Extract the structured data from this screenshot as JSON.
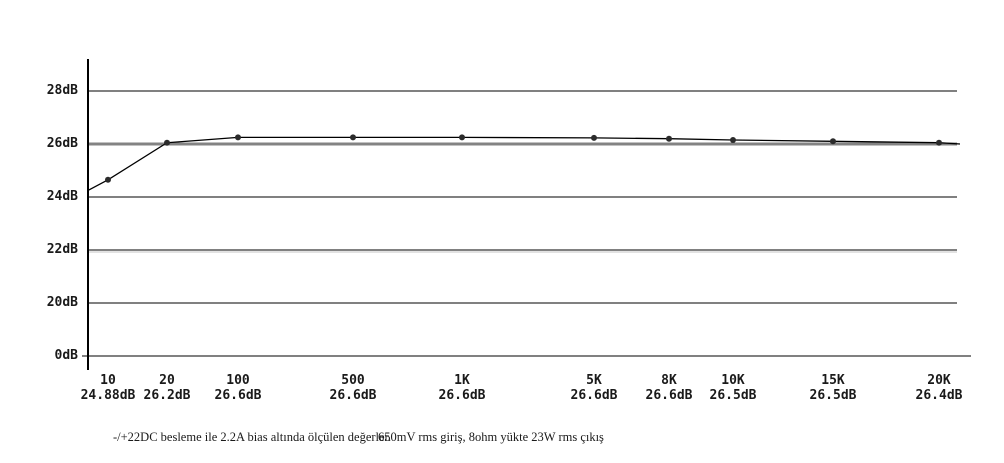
{
  "chart_data": {
    "type": "line",
    "title": "",
    "xlabel": "",
    "ylabel": "",
    "x_categories": [
      "10",
      "20",
      "100",
      "500",
      "1K",
      "5K",
      "8K",
      "10K",
      "15K",
      "20K"
    ],
    "point_value_labels": [
      "24.88dB",
      "26.2dB",
      "26.6dB",
      "26.6dB",
      "26.6dB",
      "26.6dB",
      "26.6dB",
      "26.5dB",
      "26.5dB",
      "26.4dB"
    ],
    "values_db": [
      24.88,
      26.2,
      26.6,
      26.6,
      26.6,
      26.6,
      26.6,
      26.5,
      26.5,
      26.4
    ],
    "drawn_curve_db": [
      24.65,
      26.05,
      26.25,
      26.25,
      26.25,
      26.23,
      26.2,
      26.15,
      26.1,
      26.05
    ],
    "curve_start_db": 24.25,
    "curve_end_db": 26.0,
    "y_axis_ticks": [
      "28dB",
      "26dB",
      "24dB",
      "22dB",
      "20dB",
      "0dB"
    ],
    "emphasized_gridline": "26dB",
    "grid_on": true,
    "legend": "none",
    "line_color": "#000000",
    "marker_color": "#2b2b2b",
    "gridline_color": "#000000",
    "emphasized_gridline_color": "#838383"
  },
  "footnote": {
    "conditions": "-/+22DC besleme ile 2.2A bias altında ölçülen değerler.",
    "signal": "650mV rms giriş, 8ohm yükte 23W rms çıkış"
  }
}
